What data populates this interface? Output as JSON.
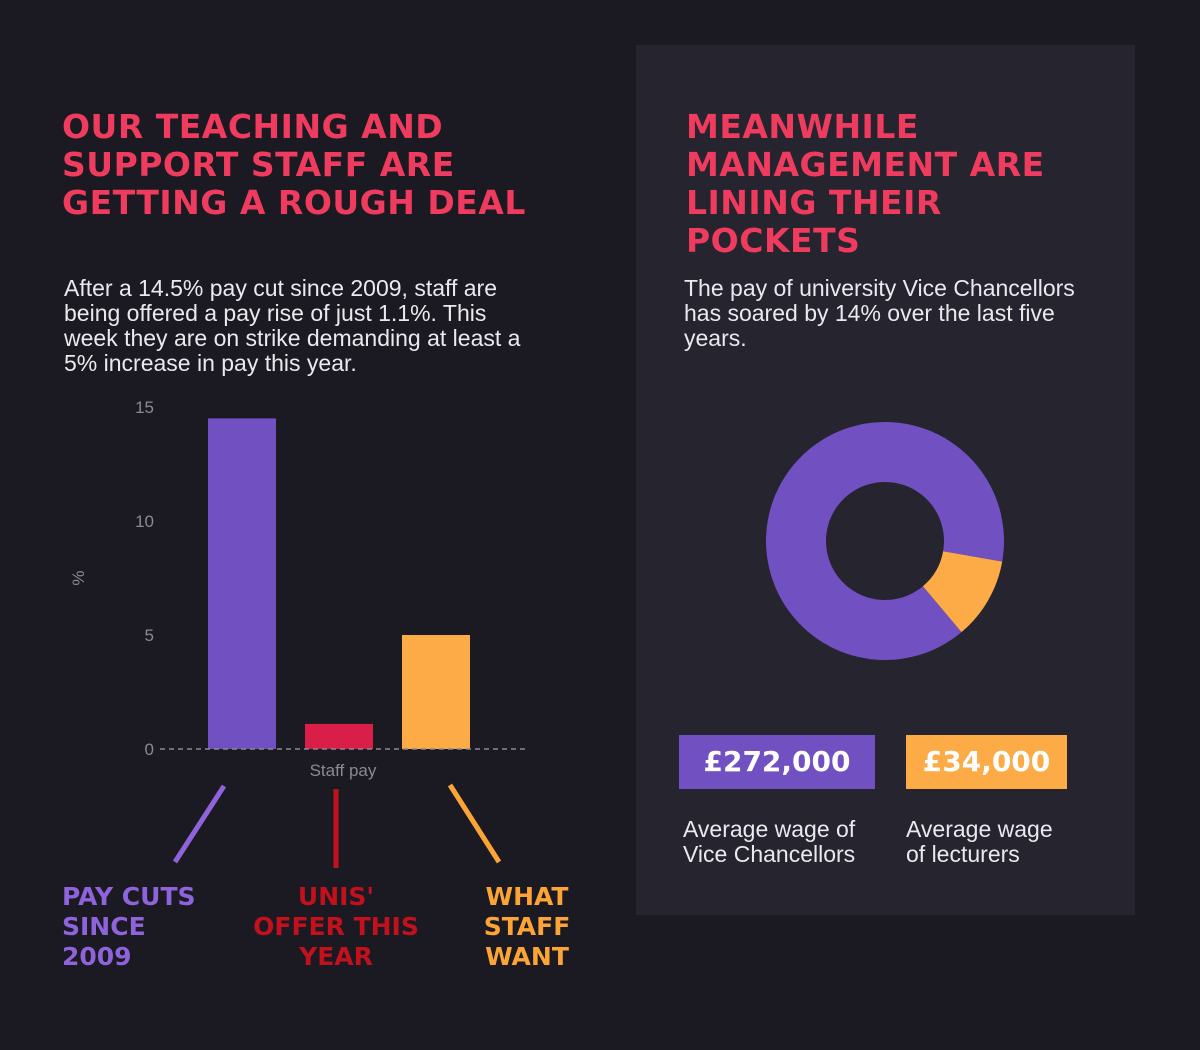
{
  "left": {
    "heading": "OUR TEACHING AND SUPPORT STAFF ARE GETTING A ROUGH DEAL",
    "intro": "After a 14.5% pay cut since 2009, staff are being offered a pay rise of just 1.1%. This week they are on strike demanding at least a 5% increase in pay this year."
  },
  "right": {
    "heading": "MEANWHILE MANAGEMENT ARE LINING THEIR POCKETS",
    "intro": "The pay of university Vice Chancellors has soared by 14% over the last five years."
  },
  "colors": {
    "heading": "#ef3b5e",
    "purple": "#7150c2",
    "crimson": "#d91e48",
    "orange": "#fcab46",
    "label_purple": "#8e63db",
    "label_red": "#c2101d",
    "label_orange": "#fca535"
  },
  "chart_data": [
    {
      "type": "bar",
      "categories": [
        "Staff pay"
      ],
      "xlabel": "Staff pay",
      "ylabel": "%",
      "ylim": [
        0,
        15
      ],
      "yticks": [
        0,
        5,
        10,
        15
      ],
      "series": [
        {
          "name": "PAY CUTS SINCE 2009",
          "values": [
            14.5
          ]
        },
        {
          "name": "UNIS' OFFER THIS YEAR",
          "values": [
            1.1
          ]
        },
        {
          "name": "WHAT STAFF WANT",
          "values": [
            5
          ]
        }
      ],
      "callouts": [
        {
          "lines": [
            "PAY CUTS",
            "SINCE",
            "2009"
          ]
        },
        {
          "lines": [
            "UNIS'",
            "OFFER THIS",
            "YEAR"
          ]
        },
        {
          "lines": [
            "WHAT",
            "STAFF",
            "WANT"
          ]
        }
      ]
    },
    {
      "type": "pie",
      "labels": [
        "Average wage of Vice Chancellors",
        "Average wage of lecturers"
      ],
      "values": [
        272000,
        34000
      ],
      "display_values": [
        "£272,000",
        "£34,000"
      ]
    }
  ]
}
